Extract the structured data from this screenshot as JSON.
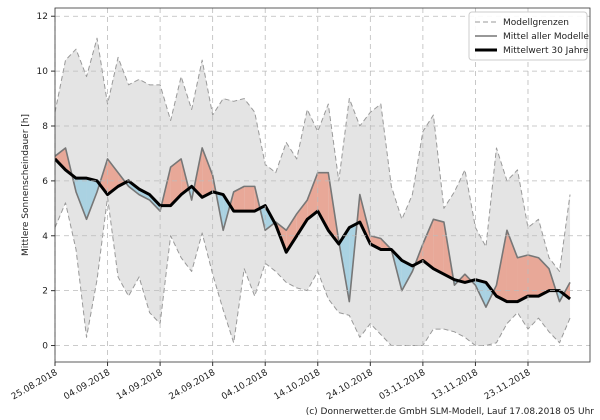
{
  "chart_data": {
    "type": "line",
    "ylabel": "Mittlere Sonnenscheindauer [h]",
    "footnote": "(c) Donnerwetter.de GmbH SLM-Modell, Lauf 17.08.2018 05 Uhr",
    "x": [
      "25.08.2018",
      "27.08.2018",
      "29.08.2018",
      "31.08.2018",
      "02.09.2018",
      "04.09.2018",
      "06.09.2018",
      "08.09.2018",
      "10.09.2018",
      "12.09.2018",
      "14.09.2018",
      "16.09.2018",
      "18.09.2018",
      "20.09.2018",
      "22.09.2018",
      "24.09.2018",
      "26.09.2018",
      "28.09.2018",
      "30.09.2018",
      "02.10.2018",
      "04.10.2018",
      "06.10.2018",
      "08.10.2018",
      "10.10.2018",
      "12.10.2018",
      "14.10.2018",
      "16.10.2018",
      "18.10.2018",
      "20.10.2018",
      "22.10.2018",
      "24.10.2018",
      "26.10.2018",
      "28.10.2018",
      "30.10.2018",
      "01.11.2018",
      "03.11.2018",
      "05.11.2018",
      "07.11.2018",
      "09.11.2018",
      "11.11.2018",
      "13.11.2018",
      "15.11.2018",
      "17.11.2018",
      "19.11.2018",
      "21.11.2018",
      "23.11.2018",
      "25.11.2018",
      "27.11.2018",
      "29.11.2018",
      "01.12.2018"
    ],
    "xticks": [
      "25.08.2018",
      "04.09.2018",
      "14.09.2018",
      "24.09.2018",
      "04.10.2018",
      "14.10.2018",
      "24.10.2018",
      "03.11.2018",
      "13.11.2018",
      "23.11.2018"
    ],
    "ylim": [
      -0.6,
      12.3
    ],
    "yticks": [
      0,
      2,
      4,
      6,
      8,
      10,
      12
    ],
    "grid": true,
    "band_color": "#e4e4e4",
    "above_color": "#e8a898",
    "below_color": "#aad2e2",
    "legend_position": "upper right",
    "series": [
      {
        "name": "Modellgrenzen",
        "color": "#999999",
        "linestyle": "dashed",
        "linewidth": 1,
        "upper": [
          8.5,
          10.4,
          10.8,
          9.8,
          11.2,
          8.8,
          10.5,
          9.5,
          9.7,
          9.5,
          9.5,
          8.2,
          9.8,
          8.6,
          10.4,
          8.4,
          9,
          8.9,
          9,
          8.5,
          6.6,
          6.3,
          7.4,
          6.8,
          8.6,
          7.8,
          8.8,
          6,
          9,
          8,
          8.5,
          8.8,
          5.8,
          4.6,
          5.5,
          7.8,
          8.4,
          5,
          5.6,
          6.4,
          4.3,
          3.6,
          7.2,
          6,
          6.4,
          4.3,
          4.6,
          3.2,
          2.7,
          5.5
        ],
        "lower": [
          4.3,
          5.2,
          3.5,
          0.3,
          2.4,
          5.4,
          2.5,
          1.8,
          2.5,
          1.2,
          0.8,
          4,
          3.2,
          2.7,
          4.1,
          2.6,
          1.3,
          0.1,
          2.8,
          1.8,
          3,
          2.7,
          2.3,
          2.1,
          2,
          2.7,
          1.7,
          1.2,
          1.1,
          0.3,
          0.8,
          0.4,
          0,
          0,
          0,
          0,
          0.6,
          0.6,
          0.5,
          0.3,
          0,
          0,
          0.1,
          0.8,
          1.2,
          0.6,
          1,
          0.5,
          0.1,
          1
        ]
      },
      {
        "name": "Mittel aller Modelle",
        "color": "#777777",
        "linestyle": "solid",
        "linewidth": 1.6,
        "values": [
          6.9,
          7.2,
          5.6,
          4.6,
          5.6,
          6.8,
          6.3,
          5.8,
          5.5,
          5.3,
          4.9,
          6.5,
          6.8,
          5.3,
          7.2,
          6.2,
          4.2,
          5.6,
          5.8,
          5.8,
          4.2,
          4.5,
          4.2,
          4.8,
          5.3,
          6.3,
          6.3,
          3.8,
          1.6,
          5.5,
          4,
          3.9,
          3.5,
          2,
          2.7,
          3.7,
          4.6,
          4.5,
          2.2,
          2.6,
          2.2,
          1.4,
          2.2,
          4.2,
          3.2,
          3.3,
          3.2,
          2.8,
          1.6,
          2.3
        ]
      },
      {
        "name": "Mittelwert 30 Jahre",
        "color": "#000000",
        "linestyle": "solid",
        "linewidth": 3,
        "values": [
          6.8,
          6.4,
          6.1,
          6.1,
          6,
          5.5,
          5.8,
          6,
          5.7,
          5.5,
          5.1,
          5.1,
          5.5,
          5.8,
          5.4,
          5.6,
          5.5,
          4.9,
          4.9,
          4.9,
          5.1,
          4.4,
          3.4,
          4,
          4.6,
          4.9,
          4.2,
          3.7,
          4.3,
          4.5,
          3.7,
          3.5,
          3.5,
          3.1,
          2.9,
          3.1,
          2.8,
          2.6,
          2.4,
          2.3,
          2.4,
          2.3,
          1.8,
          1.6,
          1.6,
          1.8,
          1.8,
          2,
          2,
          1.7
        ]
      }
    ]
  }
}
